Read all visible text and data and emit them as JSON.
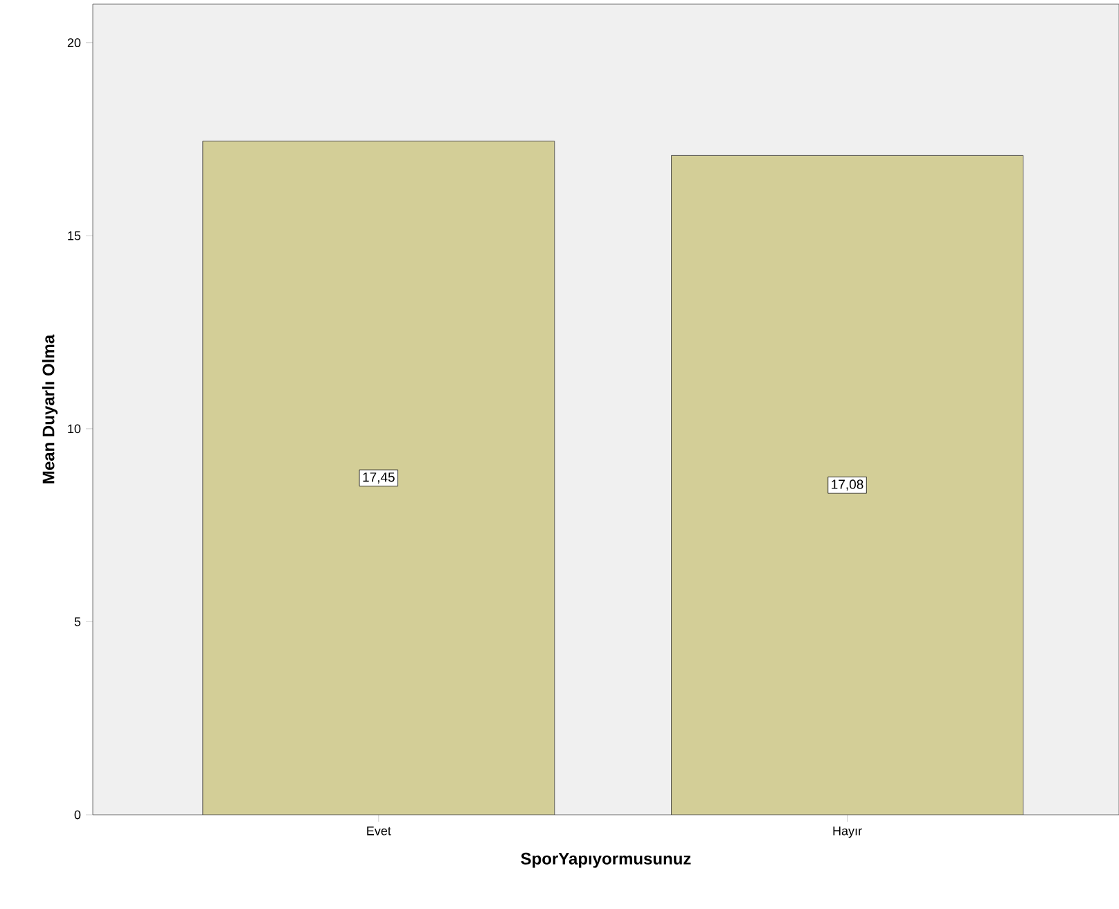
{
  "chart_data": {
    "type": "bar",
    "xlabel": "SporYapıyormusunuz",
    "ylabel": "Mean Duyarlı Olma",
    "categories": [
      "Evet",
      "Hayır"
    ],
    "values": [
      17.45,
      17.08
    ],
    "value_labels": [
      "17,45",
      "17,08"
    ],
    "color": "#d3ce97",
    "ylim": [
      0,
      21
    ],
    "yticks": [
      0,
      5,
      10,
      15,
      20
    ],
    "grid": false
  }
}
